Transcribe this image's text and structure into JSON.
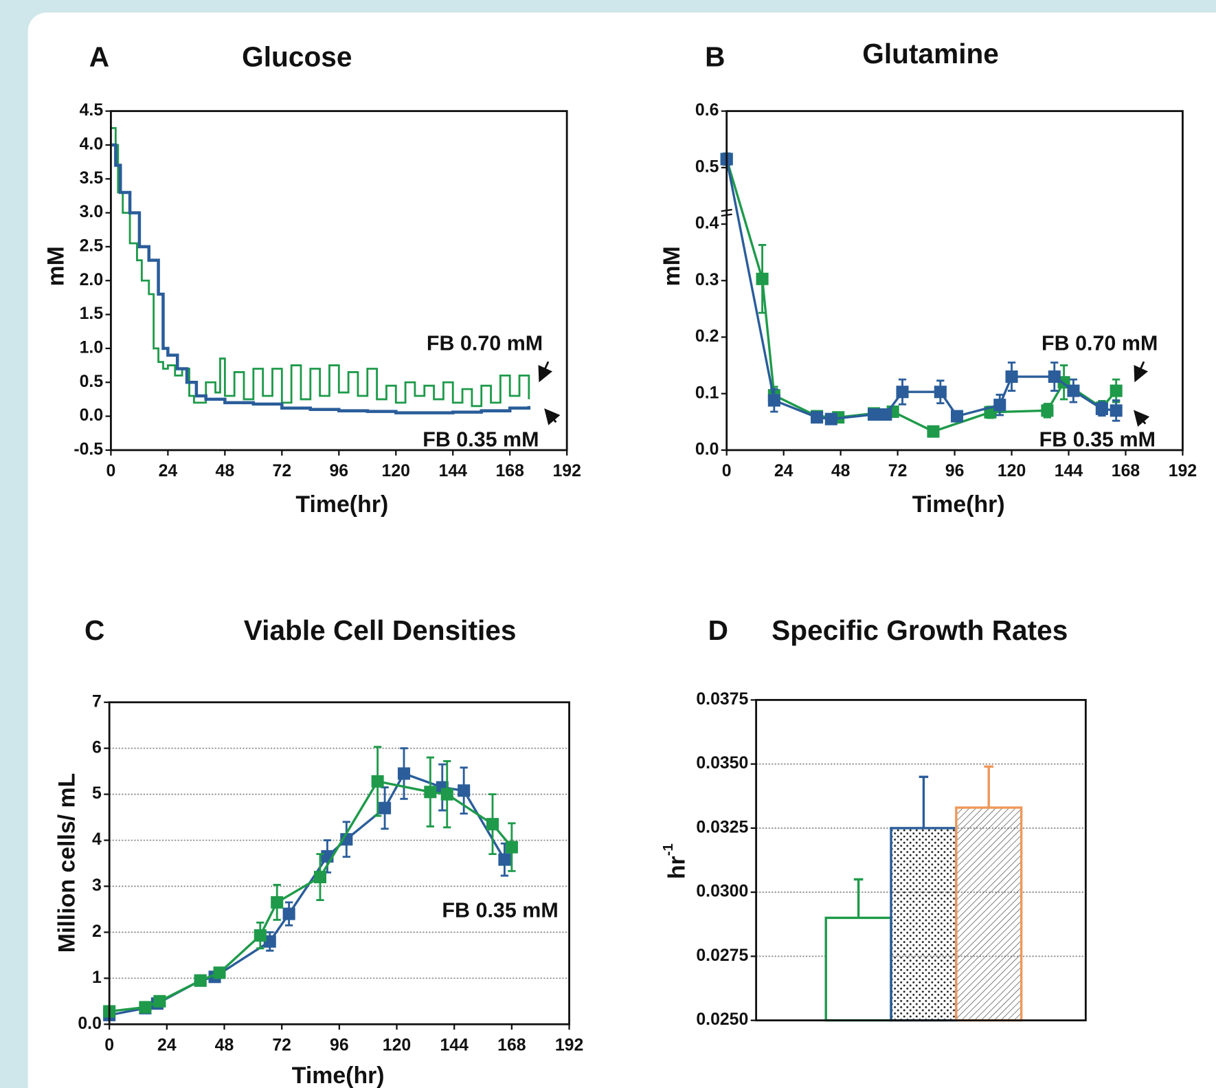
{
  "chart_data": [
    {
      "type": "line",
      "step": true,
      "panel": "A",
      "title": "Glucose",
      "x_label": "Time(hr)",
      "y_label": "mM",
      "xlim": [
        0,
        192
      ],
      "xticks": [
        0,
        24,
        48,
        72,
        96,
        120,
        144,
        168,
        192
      ],
      "ylim": [
        -0.5,
        4.5
      ],
      "yticks": [
        -0.5,
        {
          "value": 0,
          "label": "0.0"
        },
        0.5,
        {
          "value": 1,
          "label": "1.0"
        },
        1.5,
        {
          "value": 2,
          "label": "2.0"
        },
        2.5,
        {
          "value": 3,
          "label": "3.0"
        },
        3.5,
        {
          "value": 4,
          "label": "4.0"
        },
        4.5
      ],
      "series": [
        {
          "name": "FB 0.70 mM",
          "color": "#1e9a4a",
          "x": [
            0,
            2,
            3,
            5,
            8,
            11,
            13,
            16,
            18,
            20,
            22,
            24,
            27,
            30,
            33,
            35,
            40,
            44,
            46,
            48,
            52,
            56,
            60,
            64,
            68,
            72,
            76,
            80,
            84,
            88,
            92,
            96,
            100,
            104,
            108,
            112,
            116,
            120,
            124,
            128,
            132,
            136,
            140,
            144,
            148,
            152,
            156,
            160,
            164,
            168,
            172,
            176
          ],
          "values": [
            4.25,
            4.0,
            3.3,
            3.0,
            2.55,
            2.3,
            2.0,
            1.8,
            1.0,
            0.8,
            0.7,
            0.75,
            0.6,
            0.7,
            0.3,
            0.2,
            0.5,
            0.35,
            0.85,
            0.3,
            0.65,
            0.25,
            0.7,
            0.3,
            0.7,
            0.2,
            0.75,
            0.25,
            0.7,
            0.3,
            0.75,
            0.35,
            0.65,
            0.3,
            0.7,
            0.25,
            0.45,
            0.2,
            0.5,
            0.3,
            0.45,
            0.25,
            0.5,
            0.2,
            0.4,
            0.15,
            0.45,
            0.2,
            0.6,
            0.3,
            0.6,
            0.25
          ]
        },
        {
          "name": "FB 0.35 mM",
          "color": "#2a5d9a",
          "x": [
            0,
            2,
            4,
            8,
            12,
            16,
            20,
            22,
            24,
            28,
            32,
            36,
            40,
            48,
            60,
            72,
            84,
            96,
            108,
            120,
            132,
            144,
            156,
            168,
            176
          ],
          "values": [
            4.0,
            3.7,
            3.3,
            3.0,
            2.5,
            2.3,
            1.8,
            1.0,
            0.9,
            0.7,
            0.5,
            0.3,
            0.25,
            0.2,
            0.18,
            0.12,
            0.1,
            0.08,
            0.07,
            0.05,
            0.05,
            0.06,
            0.08,
            0.12,
            0.15
          ]
        }
      ]
    },
    {
      "type": "line",
      "markers": true,
      "panel": "B",
      "title": "Glutamine",
      "x_label": "Time(hr)",
      "y_label": "mM",
      "xlim": [
        0,
        192
      ],
      "xticks": [
        0,
        24,
        48,
        72,
        96,
        120,
        144,
        168,
        192
      ],
      "ylim": [
        0,
        0.6
      ],
      "yticks": [
        {
          "value": 0,
          "label": "0.0"
        },
        0.1,
        0.2,
        0.3,
        0.4,
        0.5,
        0.6
      ],
      "series": [
        {
          "name": "FB 0.70 mM",
          "color": "#1e9a4a",
          "x": [
            0,
            15,
            20,
            38,
            47,
            62,
            70,
            87,
            111,
            135,
            142,
            158,
            164
          ],
          "values": [
            0.515,
            0.303,
            0.097,
            0.06,
            0.058,
            0.065,
            0.068,
            0.033,
            0.067,
            0.07,
            0.12,
            0.075,
            0.105
          ],
          "errors": [
            0.01,
            0.06,
            0.015,
            0.005,
            0.005,
            0.008,
            0.008,
            0.005,
            0.01,
            0.012,
            0.03,
            0.012,
            0.02
          ]
        },
        {
          "name": "FB 0.35 mM",
          "color": "#2a5d9a",
          "x": [
            0,
            20,
            38,
            44,
            62,
            67,
            74,
            90,
            97,
            115,
            120,
            138,
            146,
            158,
            164
          ],
          "values": [
            0.515,
            0.088,
            0.058,
            0.055,
            0.063,
            0.063,
            0.103,
            0.103,
            0.06,
            0.08,
            0.13,
            0.13,
            0.105,
            0.073,
            0.07
          ],
          "errors": [
            0.01,
            0.02,
            0.005,
            0.005,
            0.005,
            0.005,
            0.022,
            0.02,
            0.008,
            0.018,
            0.025,
            0.025,
            0.02,
            0.012,
            0.018
          ]
        }
      ]
    },
    {
      "type": "line",
      "markers": true,
      "grid": true,
      "panel": "C",
      "title": "Viable Cell Densities",
      "x_label": "Time(hr)",
      "y_label": "Million cells/ mL",
      "xlim": [
        0,
        192
      ],
      "xticks": [
        0,
        24,
        48,
        72,
        96,
        120,
        144,
        168,
        192
      ],
      "ylim": [
        0,
        7
      ],
      "yticks": [
        {
          "value": 0,
          "label": "0.0"
        },
        1,
        2,
        3,
        4,
        5,
        6,
        7
      ],
      "series": [
        {
          "name": "FB 0.35 mM",
          "color": "#2a5d9a",
          "x": [
            0,
            15,
            20,
            38,
            44,
            67,
            75,
            91,
            99,
            115,
            123,
            139,
            148,
            165
          ],
          "values": [
            0.2,
            0.35,
            0.45,
            0.95,
            1.03,
            1.8,
            2.4,
            3.65,
            4.02,
            4.7,
            5.45,
            5.15,
            5.08,
            3.58
          ],
          "errors": [
            0.05,
            0.05,
            0.05,
            0.05,
            0.05,
            0.2,
            0.25,
            0.35,
            0.38,
            0.45,
            0.55,
            0.5,
            0.5,
            0.35
          ]
        },
        {
          "color": "#1e9a4a",
          "x": [
            0,
            15,
            21,
            38,
            46,
            63,
            70,
            88,
            112,
            134,
            141,
            160,
            168
          ],
          "values": [
            0.28,
            0.37,
            0.5,
            0.95,
            1.12,
            1.93,
            2.65,
            3.2,
            5.28,
            5.05,
            5.0,
            4.35,
            3.85
          ],
          "errors": [
            0.05,
            0.05,
            0.05,
            0.05,
            0.05,
            0.28,
            0.38,
            0.5,
            0.75,
            0.75,
            0.72,
            0.65,
            0.52
          ]
        }
      ]
    },
    {
      "type": "bar",
      "grid": true,
      "panel": "D",
      "title": "Specific Growth Rates",
      "y_label": "hr",
      "y_label_sup": "-1",
      "ylim": [
        0.025,
        0.0375
      ],
      "yticks": [
        {
          "value": 0.025,
          "label": "0.0250"
        },
        0.0275,
        {
          "value": 0.03,
          "label": "0.0300"
        },
        0.0325,
        {
          "value": 0.035,
          "label": "0.0350"
        },
        0.0375
      ],
      "categories": [
        null,
        null,
        null
      ],
      "values": [
        0.029,
        0.0325,
        0.0333
      ],
      "errors": [
        0.0015,
        0.002,
        0.0016
      ],
      "colors": [
        "#1e9a4a",
        "#2a5d9a",
        "#f0975a"
      ],
      "patterns": [
        "none",
        "dots",
        "hatch"
      ]
    }
  ]
}
